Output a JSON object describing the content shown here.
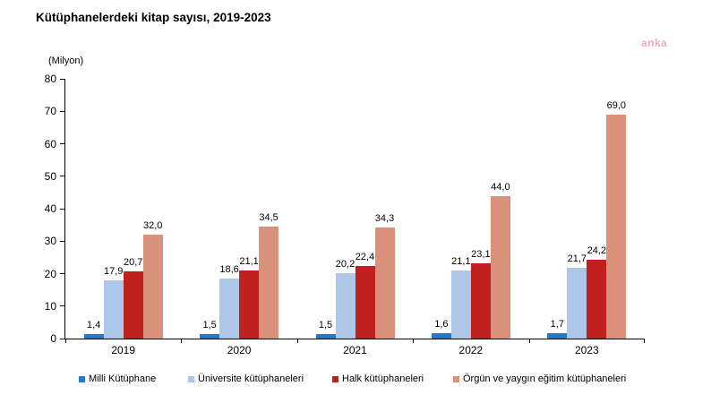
{
  "title": "Kütüphanelerdeki kitap sayısı, 2019-2023",
  "unit": "(Milyon)",
  "watermark": "anka",
  "chart_data": {
    "type": "bar",
    "title": "Kütüphanelerdeki kitap sayısı, 2019-2023",
    "xlabel": "",
    "ylabel": "(Milyon)",
    "ylim": [
      0,
      80
    ],
    "ytick_step": 10,
    "grid": false,
    "legend_position": "bottom",
    "categories": [
      "2019",
      "2020",
      "2021",
      "2022",
      "2023"
    ],
    "series": [
      {
        "name": "Milli Kütüphane",
        "color": "#2878BE",
        "values": [
          1.4,
          1.5,
          1.5,
          1.6,
          1.7
        ],
        "labels": [
          "1,4",
          "1,5",
          "1,5",
          "1,6",
          "1,7"
        ]
      },
      {
        "name": "Üniversite kütüphaneleri",
        "color": "#AEC7E8",
        "values": [
          17.9,
          18.6,
          20.2,
          21.1,
          21.7
        ],
        "labels": [
          "17,9",
          "18,6",
          "20,2",
          "21,1",
          "21,7"
        ]
      },
      {
        "name": "Halk kütüphaneleri",
        "color": "#BF211E",
        "values": [
          20.7,
          21.1,
          22.4,
          23.1,
          24.2
        ],
        "labels": [
          "20,7",
          "21,1",
          "22,4",
          "23,1",
          "24,2"
        ]
      },
      {
        "name": "Örgün ve yaygın eğitim kütüphaneleri",
        "color": "#D9917C",
        "values": [
          32.0,
          34.5,
          34.3,
          44.0,
          69.0
        ],
        "labels": [
          "32,0",
          "34,5",
          "34,3",
          "44,0",
          "69,0"
        ]
      }
    ]
  }
}
